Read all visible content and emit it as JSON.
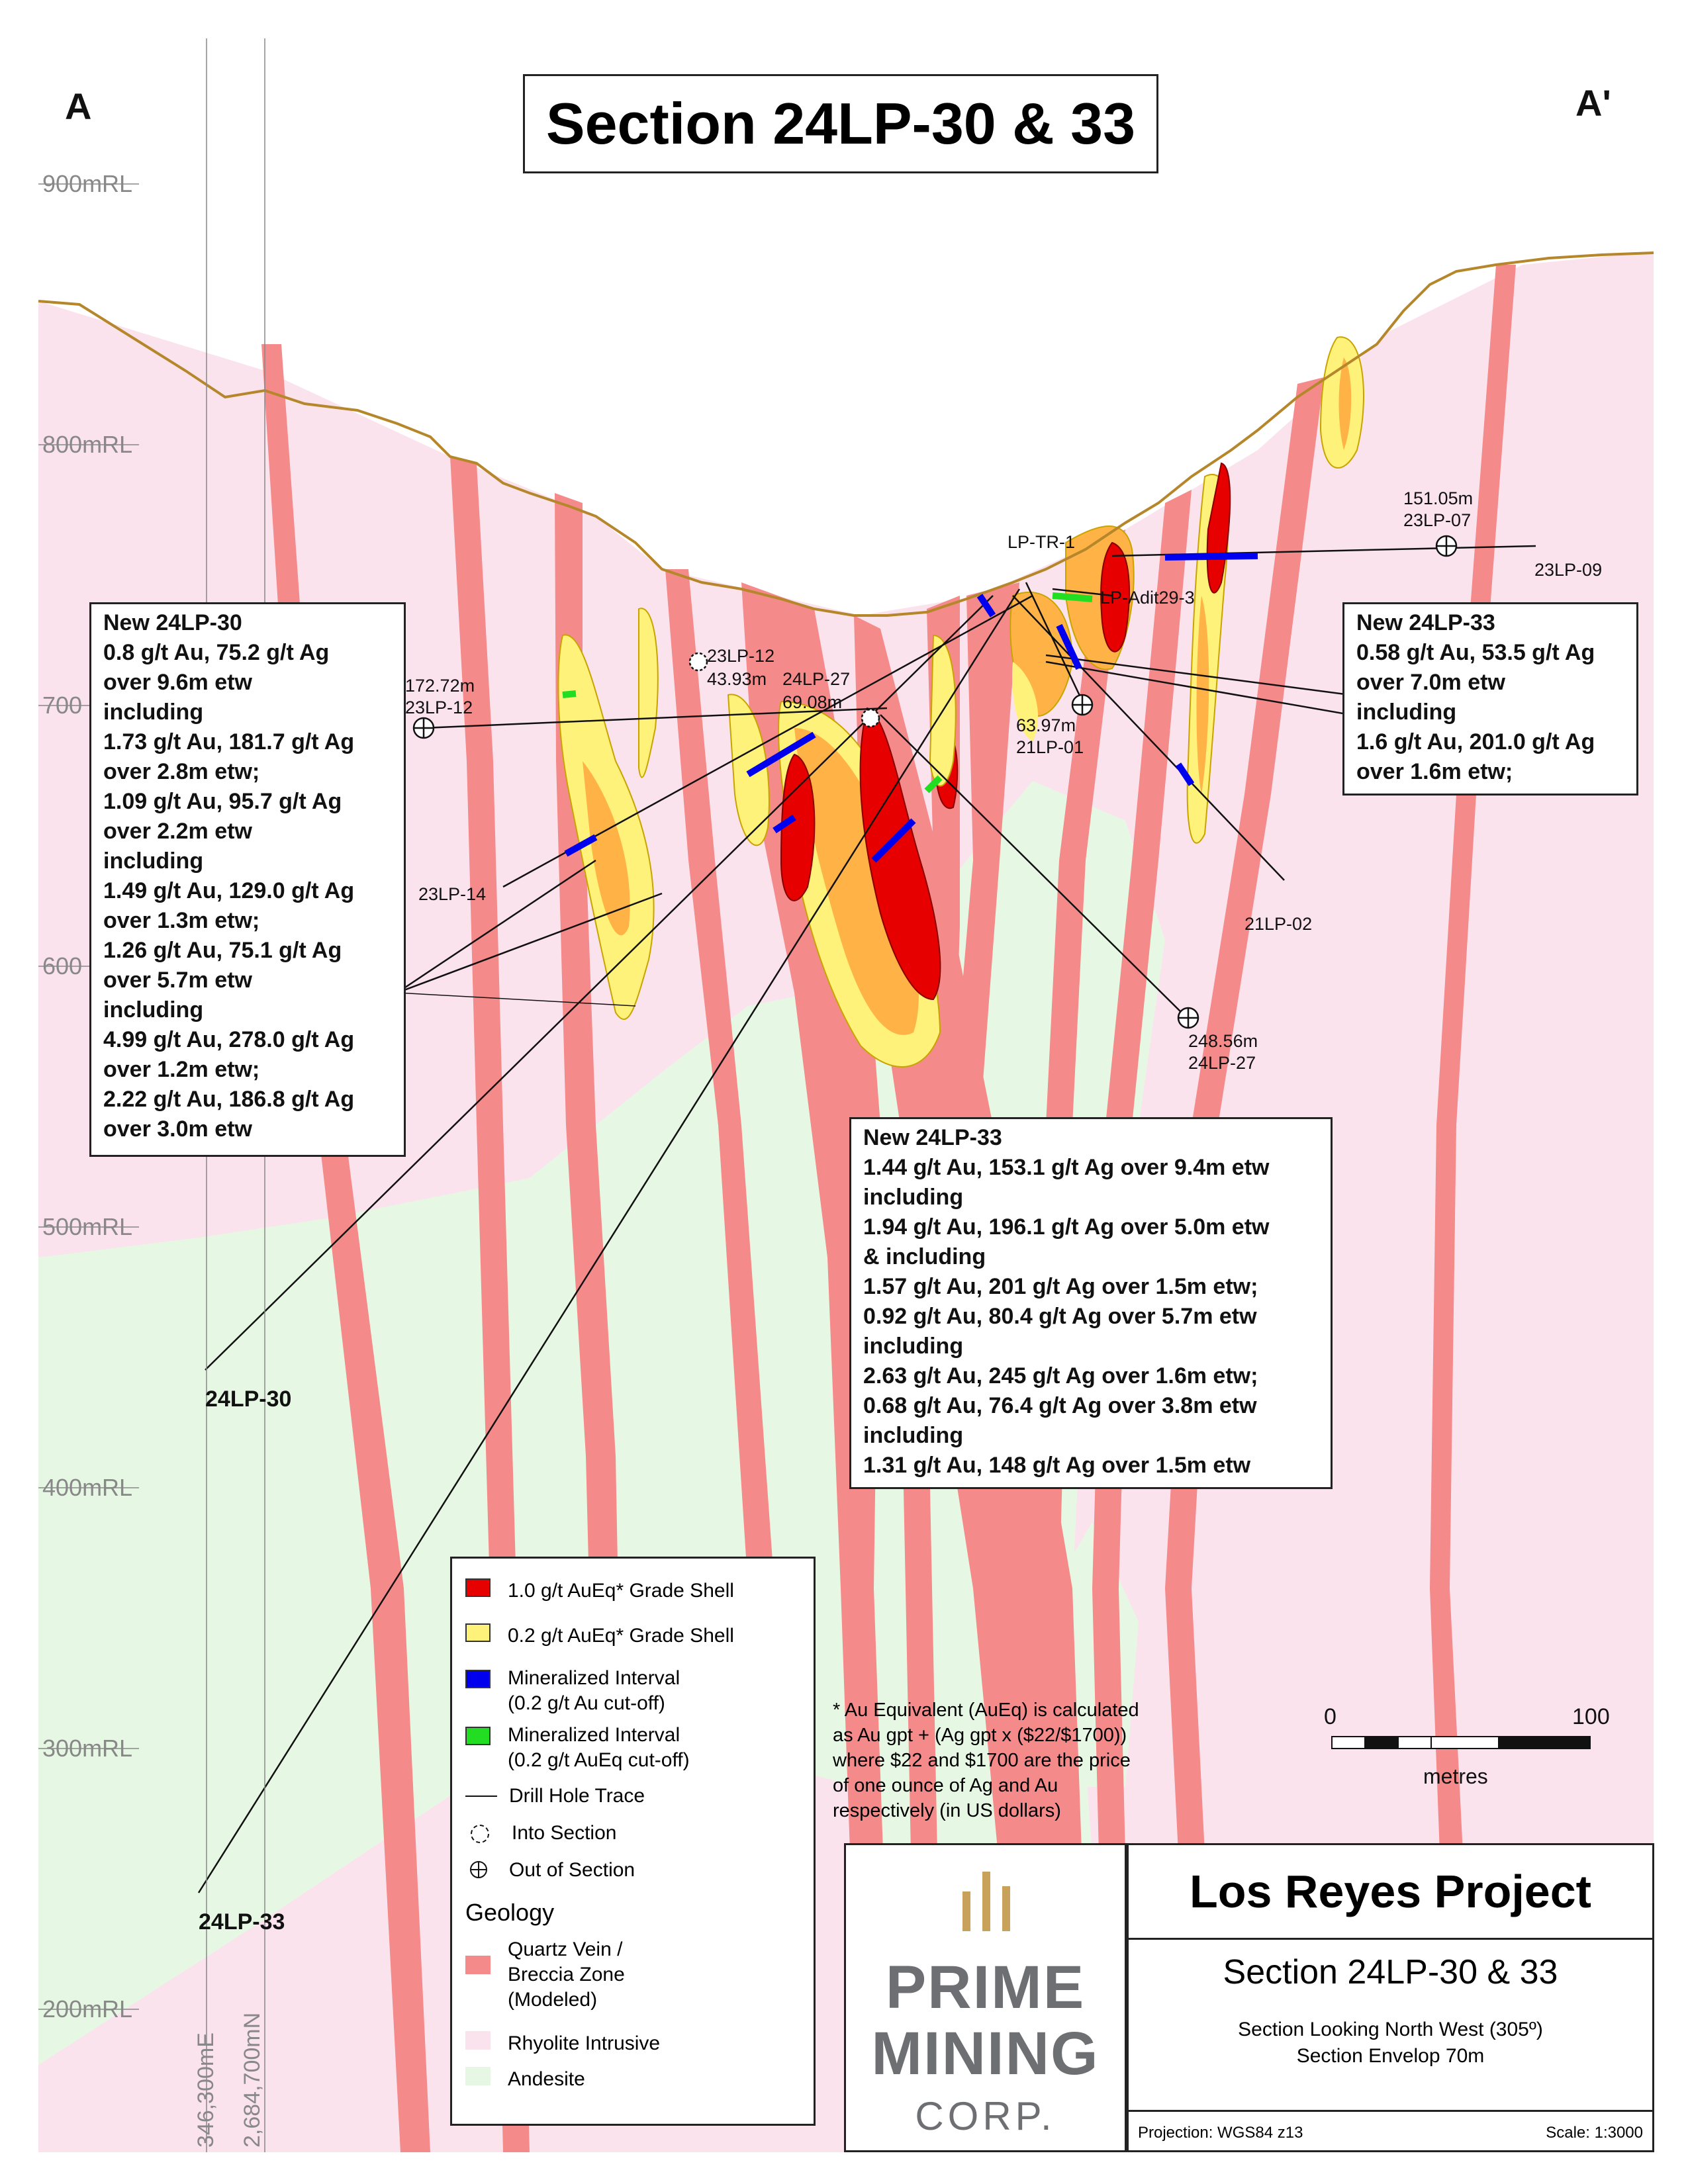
{
  "title": "Section 24LP-30 & 33",
  "corner_labels": {
    "left": "A",
    "right": "A'"
  },
  "elevation_labels": [
    "900mRL",
    "800mRL",
    "700",
    "600",
    "500mRL",
    "400mRL",
    "300mRL",
    "200mRL"
  ],
  "coordinate_labels": [
    "346,300mE",
    "2,684,700mN"
  ],
  "drill_hole_labels": {
    "h23lp12_a": "172.72m",
    "h23lp12_b": "23LP-12",
    "h23lp12c_a": "23LP-12",
    "h23lp12c_b": "43.93m",
    "h24lp27_a": "24LP-27",
    "h24lp27_b": "69.08m",
    "h21lp01_a": "63.97m",
    "h21lp01_b": "21LP-01",
    "h23lp07_a": "151.05m",
    "h23lp07_b": "23LP-07",
    "h23lp09": "23LP-09",
    "lptr1": "LP-TR-1",
    "lpadit": "LP-Adit29-3",
    "h23lp14": "23LP-14",
    "h21lp02": "21LP-02",
    "h24lp27end_a": "248.56m",
    "h24lp27end_b": "24LP-27",
    "h24lp30": "24LP-30",
    "h24lp33": "24LP-33"
  },
  "annotation_left": {
    "lines": [
      "New 24LP-30",
      "0.8 g/t Au, 75.2 g/t Ag",
      "over 9.6m etw",
      "including",
      "1.73 g/t Au, 181.7 g/t Ag",
      "over 2.8m etw;",
      "1.09 g/t Au, 95.7 g/t Ag",
      "over 2.2m etw",
      "including",
      "1.49 g/t Au, 129.0 g/t Ag",
      "over 1.3m etw;",
      "1.26 g/t Au, 75.1 g/t Ag",
      "over 5.7m etw",
      "including",
      "4.99 g/t Au, 278.0 g/t Ag",
      "over 1.2m etw;",
      "2.22 g/t Au, 186.8 g/t Ag",
      "over 3.0m etw"
    ]
  },
  "annotation_right": {
    "lines": [
      "New 24LP-33",
      "0.58 g/t Au, 53.5 g/t Ag",
      "over 7.0m etw",
      "including",
      "1.6 g/t Au, 201.0 g/t Ag",
      "over 1.6m etw;"
    ]
  },
  "annotation_center": {
    "lines": [
      "New 24LP-33",
      "1.44 g/t Au, 153.1 g/t Ag over 9.4m etw",
      "including",
      "1.94 g/t Au, 196.1 g/t Ag over 5.0m etw",
      "& including",
      "1.57 g/t Au, 201 g/t Ag over 1.5m etw;",
      "0.92 g/t Au, 80.4 g/t Ag over 5.7m etw",
      "including",
      "2.63 g/t Au, 245 g/t Ag over 1.6m etw;",
      "0.68 g/t Au, 76.4 g/t Ag over 3.8m etw",
      "including",
      "1.31 g/t Au, 148 g/t Ag over 1.5m etw"
    ]
  },
  "legend": {
    "grade_high": "1.0 g/t AuEq* Grade Shell",
    "grade_low": "0.2 g/t AuEq* Grade Shell",
    "min_au_1": "Mineralized Interval",
    "min_au_2": "(0.2 g/t Au cut-off)",
    "min_aueq_1": "Mineralized Interval",
    "min_aueq_2": "(0.2 g/t AuEq cut-off)",
    "trace": "Drill Hole Trace",
    "into": "Into Section",
    "out": "Out of Section",
    "geology": "Geology",
    "vein_1": "Quartz Vein /",
    "vein_2": "Breccia Zone",
    "vein_3": "(Modeled)",
    "rhyolite": "Rhyolite Intrusive",
    "andesite": "Andesite"
  },
  "footnote": [
    "* Au Equivalent (AuEq) is calculated",
    "as Au gpt + (Ag gpt x ($22/$1700))",
    "where $22 and $1700 are the price",
    "of one ounce of Ag and Au",
    "respectively (in US dollars)"
  ],
  "scale_bar": {
    "start": "0",
    "end": "100",
    "unit": "metres"
  },
  "logo": {
    "line1": "PRIME",
    "line2": "MINING",
    "line3": "CORP."
  },
  "project": {
    "name": "Los Reyes Project",
    "section": "Section 24LP-30 & 33",
    "view": "Section Looking North West (305º)",
    "envelope": "Section Envelop 70m",
    "projection": "Projection: WGS84 z13",
    "scale": "Scale: 1:3000"
  },
  "colors": {
    "rhyolite": "#fbe3ee",
    "andesite": "#e6f8e4",
    "vein": "#f58a8a",
    "grade_high": "#e60000",
    "grade_low": "#fff27a",
    "grade_mid": "#ffb347",
    "topography": "#b5862a",
    "min_au": "#0000ee",
    "min_aueq": "#22dd22"
  }
}
